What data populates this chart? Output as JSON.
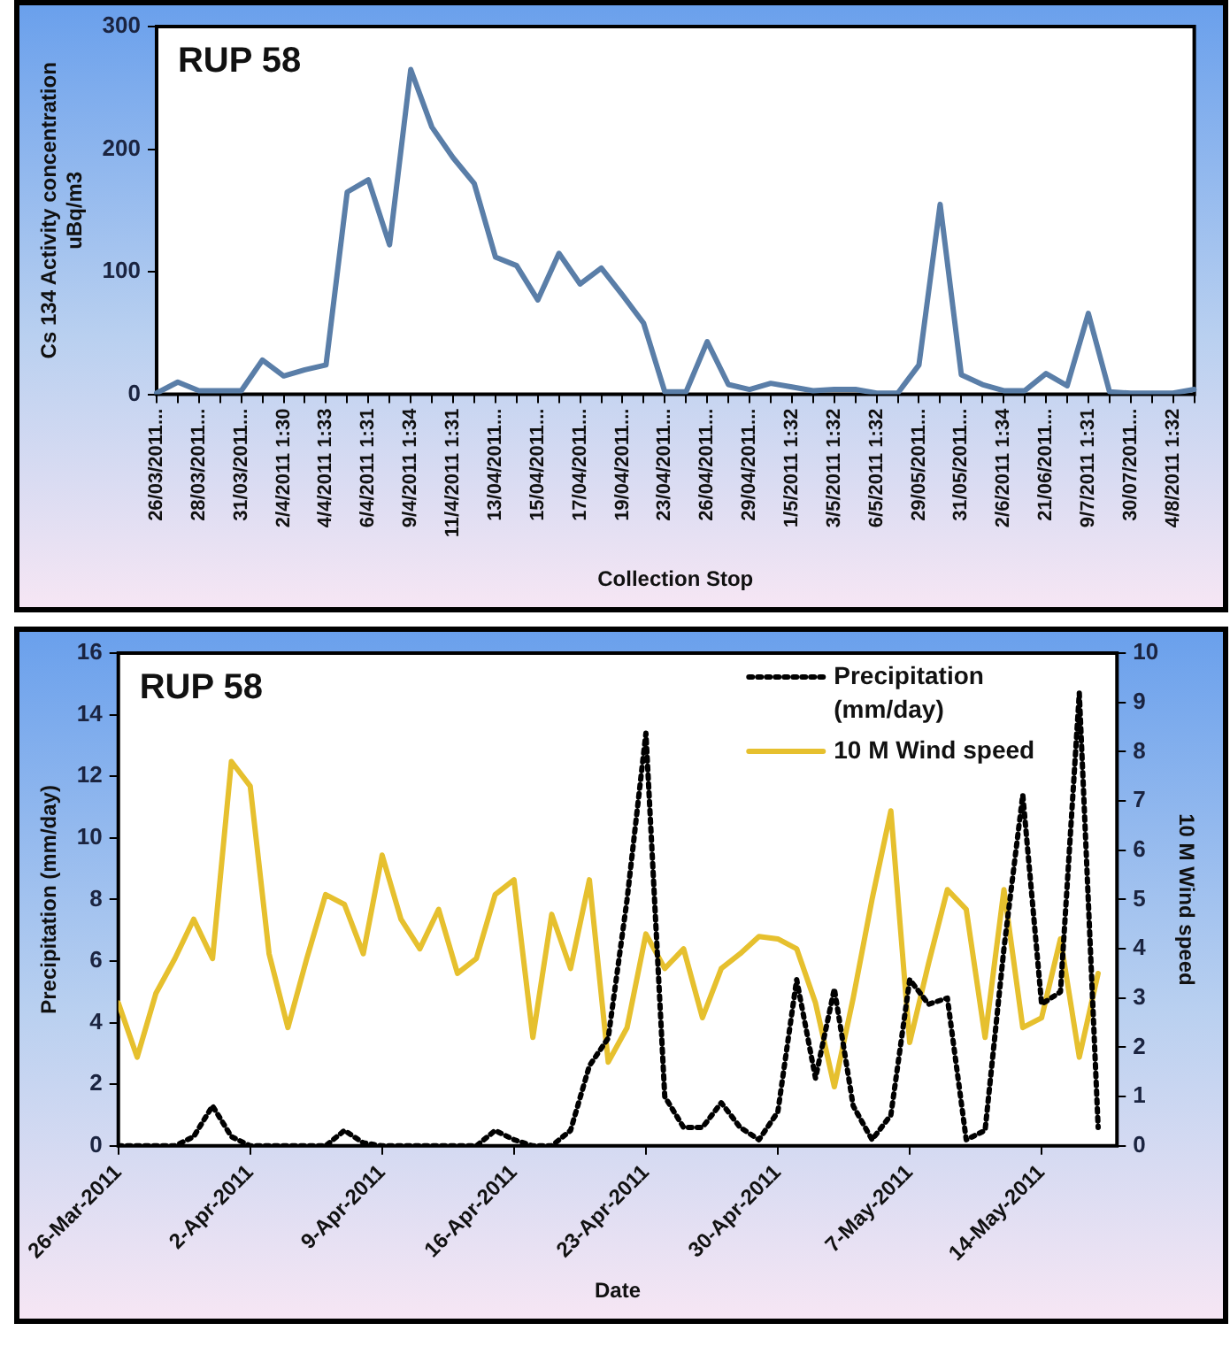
{
  "chart_data": [
    {
      "type": "line",
      "title": "RUP 58",
      "xlabel": "Collection Stop",
      "ylabel": "Cs 134 Activity concentration uBq/m3",
      "categories": [
        "26/03/2011...",
        null,
        "28/03/2011...",
        null,
        "31/03/2011...",
        null,
        "2/4/2011 1:30",
        null,
        "4/4/2011 1:33",
        null,
        "6/4/2011 1:31",
        null,
        "9/4/2011 1:34",
        null,
        "11/4/2011 1:31",
        null,
        "13/04/2011...",
        null,
        "15/04/2011...",
        null,
        "17/04/2011...",
        null,
        "19/04/2011...",
        null,
        "23/04/2011...",
        null,
        "26/04/2011...",
        null,
        "29/04/2011...",
        null,
        "1/5/2011 1:32",
        null,
        "3/5/2011 1:32",
        null,
        "6/5/2011 1:32",
        null,
        "29/05/2011...",
        null,
        "31/05/2011...",
        null,
        "2/6/2011 1:34",
        null,
        "21/06/2011...",
        null,
        "9/7/2011 1:31",
        null,
        "30/07/2011...",
        null,
        "4/8/2011 1:32",
        null
      ],
      "values": [
        1,
        10,
        3,
        3,
        3,
        28,
        15,
        20,
        24,
        165,
        175,
        122,
        265,
        218,
        193,
        172,
        112,
        105,
        77,
        115,
        90,
        103,
        81,
        58,
        2,
        2,
        43,
        8,
        4,
        9,
        6,
        3,
        4,
        4,
        1,
        1,
        24,
        155,
        16,
        8,
        3,
        3,
        17,
        7,
        66,
        2,
        1,
        1,
        1,
        4
      ],
      "color": "#5a7ea8",
      "ylim": [
        0,
        300
      ],
      "yticks": [
        0,
        100,
        200,
        300
      ]
    },
    {
      "type": "line",
      "title": "RUP 58",
      "xlabel": "Date",
      "ylabel": "Precipitation (mm/day)",
      "y2label": "10 M Wind speed",
      "legend": "top right",
      "x": [
        "2011-03-26",
        "2011-03-27",
        "2011-03-28",
        "2011-03-29",
        "2011-03-30",
        "2011-03-31",
        "2011-04-01",
        "2011-04-02",
        "2011-04-03",
        "2011-04-04",
        "2011-04-05",
        "2011-04-06",
        "2011-04-07",
        "2011-04-08",
        "2011-04-09",
        "2011-04-10",
        "2011-04-11",
        "2011-04-12",
        "2011-04-13",
        "2011-04-14",
        "2011-04-15",
        "2011-04-16",
        "2011-04-17",
        "2011-04-18",
        "2011-04-19",
        "2011-04-20",
        "2011-04-21",
        "2011-04-22",
        "2011-04-23",
        "2011-04-24",
        "2011-04-25",
        "2011-04-26",
        "2011-04-27",
        "2011-04-28",
        "2011-04-29",
        "2011-04-30",
        "2011-05-01",
        "2011-05-02",
        "2011-05-03",
        "2011-05-04",
        "2011-05-05",
        "2011-05-06",
        "2011-05-07",
        "2011-05-08",
        "2011-05-09",
        "2011-05-10",
        "2011-05-11",
        "2011-05-12",
        "2011-05-13",
        "2011-05-14",
        "2011-05-15",
        "2011-05-16",
        "2011-05-17"
      ],
      "series": [
        {
          "name": "Precipitation (mm/day)",
          "color": "#000000",
          "line_style": "dotted",
          "values": [
            0,
            0,
            0,
            0,
            0.3,
            1.3,
            0.3,
            0,
            0,
            0,
            0,
            0,
            0.5,
            0.1,
            0,
            0,
            0,
            0,
            0,
            0,
            0.5,
            0.2,
            0,
            0,
            0.5,
            2.6,
            3.5,
            8.0,
            13.4,
            1.6,
            0.6,
            0.6,
            1.4,
            0.6,
            0.2,
            1.1,
            5.4,
            2.2,
            5.1,
            1.3,
            0.2,
            1.0,
            5.4,
            4.6,
            4.8,
            0.2,
            0.5,
            6.4,
            11.4,
            4.6,
            5.0,
            14.7,
            0.6
          ]
        },
        {
          "name": "10 M Wind speed",
          "color": "#e6c02e",
          "axis": "y2",
          "values": [
            2.9,
            1.8,
            3.1,
            3.8,
            4.6,
            3.8,
            7.8,
            7.3,
            3.9,
            2.4,
            3.8,
            5.1,
            4.9,
            3.9,
            5.9,
            4.6,
            4.0,
            4.8,
            3.5,
            3.8,
            5.1,
            5.4,
            2.2,
            4.7,
            3.6,
            5.4,
            1.7,
            2.4,
            4.3,
            3.6,
            4.0,
            2.6,
            3.6,
            3.9,
            4.25,
            4.2,
            4.0,
            2.9,
            1.2,
            3.0,
            5.0,
            6.8,
            2.1,
            3.7,
            5.2,
            4.8,
            2.2,
            5.2,
            2.4,
            2.6,
            4.2,
            1.8,
            3.5
          ]
        }
      ],
      "xlim": [
        "2011-03-26",
        "2011-05-18"
      ],
      "xticks": [
        {
          "value": "2011-03-26",
          "label": "26-Mar-2011"
        },
        {
          "value": "2011-04-02",
          "label": "2-Apr-2011"
        },
        {
          "value": "2011-04-09",
          "label": "9-Apr-2011"
        },
        {
          "value": "2011-04-16",
          "label": "16-Apr-2011"
        },
        {
          "value": "2011-04-23",
          "label": "23-Apr-2011"
        },
        {
          "value": "2011-04-30",
          "label": "30-Apr-2011"
        },
        {
          "value": "2011-05-07",
          "label": "7-May-2011"
        },
        {
          "value": "2011-05-14",
          "label": "14-May-2011"
        }
      ],
      "ylim": [
        0,
        16
      ],
      "yticks": [
        0,
        2,
        4,
        6,
        8,
        10,
        12,
        14,
        16
      ],
      "y2lim": [
        0,
        10
      ],
      "y2ticks": [
        0,
        1,
        2,
        3,
        4,
        5,
        6,
        7,
        8,
        9,
        10
      ]
    }
  ]
}
